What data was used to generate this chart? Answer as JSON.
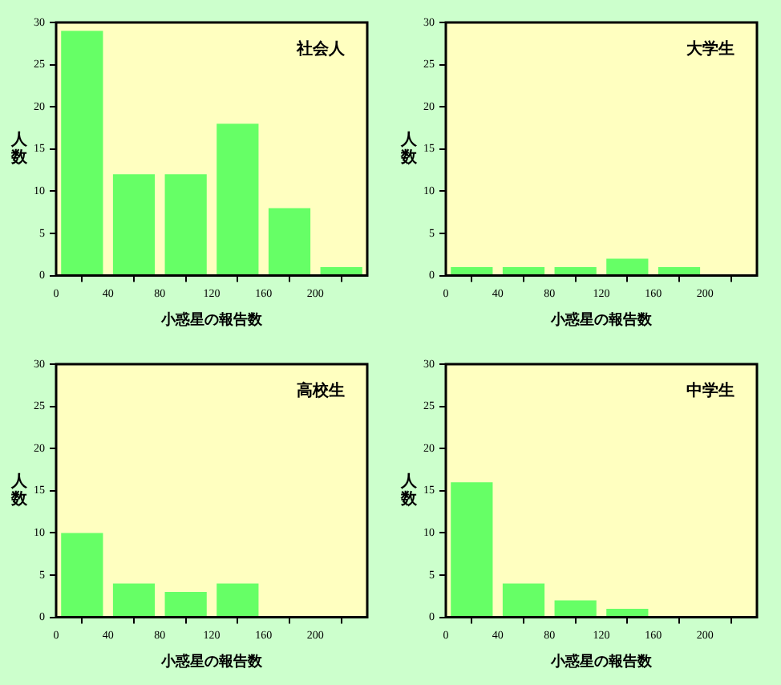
{
  "chart_data": [
    {
      "type": "histogram",
      "title": "社会人",
      "xlabel": "小惑星の報告数",
      "ylabel": "人数",
      "bins": [
        0,
        40,
        80,
        120,
        160,
        200,
        240
      ],
      "values": [
        29,
        12,
        12,
        18,
        8,
        1
      ],
      "color": "#66ff66",
      "xlim": [
        0,
        240
      ],
      "xticks": [
        0,
        40,
        80,
        120,
        160,
        200
      ],
      "ylim": [
        0,
        30
      ],
      "yticks": [
        0,
        5,
        10,
        15,
        20,
        25,
        30
      ],
      "grid": false,
      "legend": false
    },
    {
      "type": "histogram",
      "title": "大学生",
      "xlabel": "小惑星の報告数",
      "ylabel": "人数",
      "bins": [
        0,
        40,
        80,
        120,
        160,
        200,
        240
      ],
      "values": [
        1,
        1,
        1,
        2,
        1,
        0
      ],
      "color": "#66ff66",
      "xlim": [
        0,
        240
      ],
      "xticks": [
        0,
        40,
        80,
        120,
        160,
        200
      ],
      "ylim": [
        0,
        30
      ],
      "yticks": [
        0,
        5,
        10,
        15,
        20,
        25,
        30
      ],
      "grid": false,
      "legend": false
    },
    {
      "type": "histogram",
      "title": "高校生",
      "xlabel": "小惑星の報告数",
      "ylabel": "人数",
      "bins": [
        0,
        40,
        80,
        120,
        160,
        200,
        240
      ],
      "values": [
        10,
        4,
        3,
        4,
        0,
        0
      ],
      "color": "#66ff66",
      "xlim": [
        0,
        240
      ],
      "xticks": [
        0,
        40,
        80,
        120,
        160,
        200
      ],
      "ylim": [
        0,
        30
      ],
      "yticks": [
        0,
        5,
        10,
        15,
        20,
        25,
        30
      ],
      "grid": false,
      "legend": false
    },
    {
      "type": "histogram",
      "title": "中学生",
      "xlabel": "小惑星の報告数",
      "ylabel": "人数",
      "bins": [
        0,
        40,
        80,
        120,
        160,
        200,
        240
      ],
      "values": [
        16,
        4,
        2,
        1,
        0,
        0
      ],
      "color": "#66ff66",
      "xlim": [
        0,
        240
      ],
      "xticks": [
        0,
        40,
        80,
        120,
        160,
        200
      ],
      "ylim": [
        0,
        30
      ],
      "yticks": [
        0,
        5,
        10,
        15,
        20,
        25,
        30
      ],
      "grid": false,
      "legend": false
    }
  ]
}
